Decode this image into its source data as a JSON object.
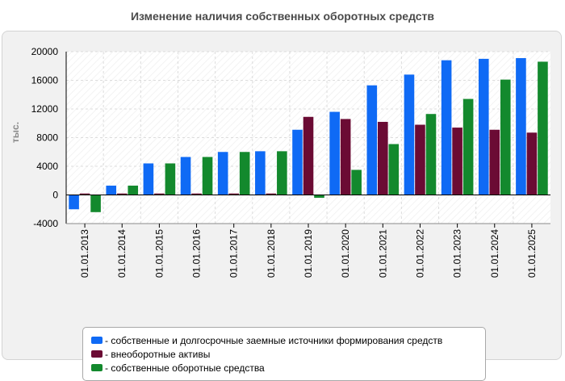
{
  "chart_data": {
    "type": "bar",
    "title": "Изменение наличия собственных оборотных средств",
    "xlabel": "",
    "ylabel": "тыс.",
    "ylim": [
      -4000,
      20000
    ],
    "yticks": [
      -4000,
      0,
      4000,
      8000,
      12000,
      16000,
      20000
    ],
    "grid": true,
    "legend_position": "bottom",
    "categories": [
      "01.01.2013",
      "01.01.2014",
      "01.01.2015",
      "01.01.2016",
      "01.01.2017",
      "01.01.2018",
      "01.01.2019",
      "01.01.2020",
      "01.01.2021",
      "01.01.2022",
      "01.01.2023",
      "01.01.2024",
      "01.01.2025"
    ],
    "series": [
      {
        "name": "- собственные и долгосрочные заемные источники формирования средств",
        "color": "#0f6af5",
        "values": [
          -2000,
          1300,
          4400,
          5300,
          6000,
          6100,
          9100,
          11600,
          15300,
          16800,
          18800,
          19000,
          19100
        ]
      },
      {
        "name": "- внеоборотные активы",
        "color": "#6b0b34",
        "values": [
          200,
          200,
          200,
          200,
          200,
          200,
          10900,
          10600,
          10200,
          9800,
          9400,
          9100,
          8700
        ]
      },
      {
        "name": "- собственные оборотные средства",
        "color": "#13892d",
        "values": [
          -2400,
          1300,
          4400,
          5300,
          6000,
          6100,
          -400,
          3500,
          7100,
          11300,
          13400,
          16100,
          18600
        ]
      }
    ]
  }
}
